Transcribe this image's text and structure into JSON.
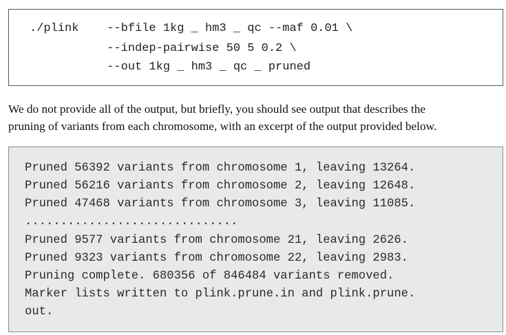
{
  "command_box": {
    "lines": [
      "./plink    --bfile 1kg _ hm3 _ qc --maf 0.01 \\",
      "           --indep-pairwise 50 5 0.2 \\",
      "           --out 1kg _ hm3 _ qc _ pruned"
    ]
  },
  "prose": {
    "lines": [
      "We do not provide all of the output, but briefly, you should see output that describes the",
      "pruning of variants from each chromosome, with an excerpt of the output provided below."
    ]
  },
  "output_box": {
    "lines": [
      "Pruned 56392 variants from chromosome 1, leaving 13264.",
      "Pruned 56216 variants from chromosome 2, leaving 12648.",
      "Pruned 47468 variants from chromosome 3, leaving 11085.",
      "..............................",
      "Pruned 9577 variants from chromosome 21, leaving 2626.",
      "Pruned 9323 variants from chromosome 22, leaving 2983.",
      "Pruning complete. 680356 of 846484 variants removed.",
      "Marker lists written to plink.prune.in and plink.prune.",
      "out."
    ]
  }
}
